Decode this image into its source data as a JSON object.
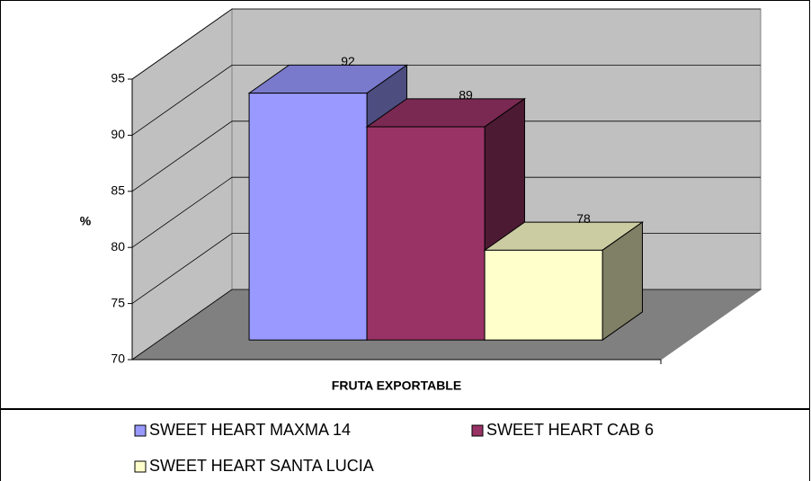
{
  "chart_data": {
    "type": "bar3d",
    "y_label": "%",
    "categories": [
      "FRUTA EXPORTABLE"
    ],
    "series": [
      {
        "name": "SWEET HEART MAXMA 14",
        "color": "#9999ff",
        "values": [
          92
        ]
      },
      {
        "name": "SWEET HEART CAB 6",
        "color": "#993366",
        "values": [
          89
        ]
      },
      {
        "name": "SWEET HEART SANTA LUCIA",
        "color": "#ffffcc",
        "values": [
          78
        ]
      }
    ],
    "ylim": [
      70,
      95
    ],
    "yticks": [
      70,
      75,
      80,
      85,
      90,
      95
    ],
    "grid": true
  }
}
